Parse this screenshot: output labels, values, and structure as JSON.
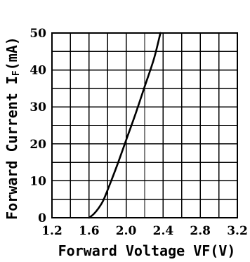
{
  "chart_data": {
    "type": "line",
    "title": "",
    "xlabel": "Forward Voltage VF(V)",
    "ylabel": "Forward Current IF(mA)",
    "ylabel_parts": {
      "prefix": "Forward Current I",
      "subscript": "F",
      "suffix": "(mA)"
    },
    "xlim": [
      1.2,
      3.2
    ],
    "ylim": [
      0,
      50
    ],
    "x_ticks": [
      1.2,
      1.4,
      1.6,
      1.8,
      2.0,
      2.2,
      2.4,
      2.6,
      2.8,
      3.0,
      3.2
    ],
    "x_tick_labels": [
      "1.2",
      "1.6",
      "2.0",
      "2.4",
      "2.8",
      "3.2"
    ],
    "x_tick_label_values": [
      1.2,
      1.6,
      2.0,
      2.4,
      2.8,
      3.2
    ],
    "y_ticks": [
      0,
      5,
      10,
      15,
      20,
      25,
      30,
      35,
      40,
      45,
      50
    ],
    "y_tick_labels": [
      "0",
      "10",
      "20",
      "30",
      "40",
      "50"
    ],
    "y_tick_label_values": [
      0,
      10,
      20,
      30,
      40,
      50
    ],
    "grid": true,
    "legend": "none",
    "series": [
      {
        "x": [
          1.6,
          1.65,
          1.7,
          1.75,
          1.8,
          1.9,
          2.0,
          2.1,
          2.2,
          2.3,
          2.37
        ],
        "values": [
          0,
          1.0,
          2.5,
          4.5,
          7.5,
          14,
          21,
          28,
          35.5,
          43,
          50
        ]
      }
    ],
    "colors": {
      "line": "#000000",
      "grid": "#000000",
      "background": "#ffffff"
    }
  }
}
